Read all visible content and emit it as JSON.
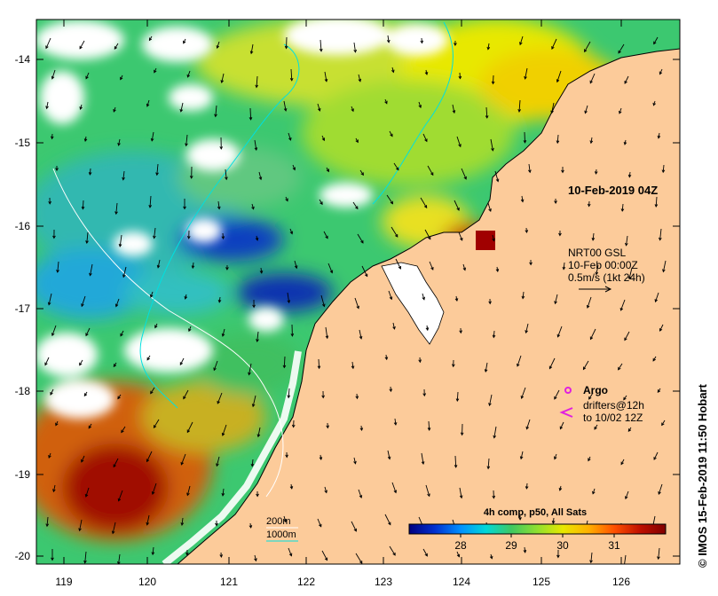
{
  "map": {
    "timestamp_label": "10-Feb-2019 04Z",
    "currents": {
      "line1": "NRT00 GSL",
      "line2": "10-Feb 00:00Z",
      "line3": "0.5m/s (1kt 24h)"
    },
    "argo_label": "Argo",
    "drifters": {
      "line1": "drifters@12h",
      "line2": "to 10/02 12Z"
    },
    "isobaths": {
      "shallow": "200m",
      "deep": "1000m"
    },
    "colorbar": {
      "title": "4h comp, p50, All Sats",
      "ticks": [
        "28",
        "29",
        "30",
        "31"
      ],
      "stops": [
        "#00007f",
        "#0030d0",
        "#0090ff",
        "#00d8d8",
        "#40c860",
        "#90e030",
        "#e8e800",
        "#ffb000",
        "#ff5000",
        "#c01000",
        "#800000"
      ]
    },
    "credit": "© IMOS 15-Feb-2019 11:50 Hobart",
    "x_ticks": [
      "119",
      "120",
      "121",
      "122",
      "123",
      "124",
      "125",
      "126"
    ],
    "y_ticks": [
      "-14",
      "-15",
      "-16",
      "-17",
      "-18",
      "-19",
      "-20"
    ],
    "colors": {
      "land": "#fccb9a",
      "shelf_contour": "#ffffff",
      "deep_contour": "#00e0e0",
      "argo": "#e020e0",
      "drifter": "#e020e0"
    }
  }
}
